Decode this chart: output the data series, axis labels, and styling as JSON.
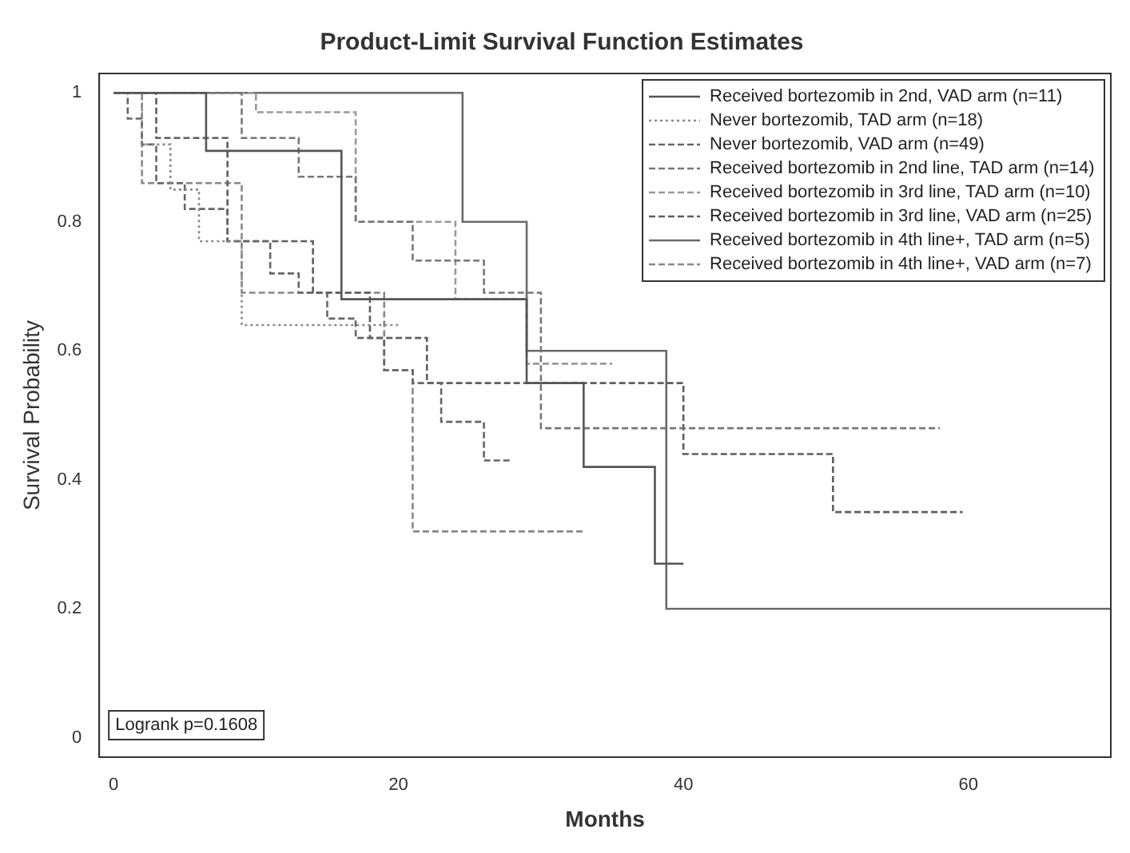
{
  "chart_data": {
    "type": "step",
    "title": "Product-Limit Survival Function Estimates",
    "xlabel": "Months",
    "ylabel": "Survival Probability",
    "xlim": [
      -1,
      70
    ],
    "xticks": [
      0,
      20,
      40,
      60
    ],
    "ylim": [
      -0.03,
      1.03
    ],
    "yticks": [
      0,
      0.2,
      0.4,
      0.6,
      0.8,
      1
    ],
    "legend": "top right",
    "grid": false,
    "annotations": [
      "Logrank p=0.1608"
    ],
    "series": [
      {
        "name": "Received bortezomib in 2nd, VAD arm (n=11)",
        "color": "#555555",
        "line_style": "solid",
        "x": [
          0,
          6.5,
          16,
          29,
          33,
          38,
          40
        ],
        "values": [
          1,
          0.91,
          0.68,
          0.55,
          0.42,
          0.27,
          0.27
        ]
      },
      {
        "name": "Never bortezomib, TAD arm (n=18)",
        "color": "#8a8a8a",
        "line_style": "dotted",
        "x": [
          0,
          2,
          4,
          6,
          9,
          20
        ],
        "values": [
          1,
          0.92,
          0.85,
          0.77,
          0.64,
          0.64
        ]
      },
      {
        "name": "Never bortezomib, VAD arm (n=49)",
        "color": "#666666",
        "line_style": "dashed",
        "x": [
          0,
          1,
          2,
          3,
          5,
          8,
          11,
          13,
          15,
          17,
          19,
          21,
          23,
          26,
          28
        ],
        "values": [
          1,
          0.96,
          0.92,
          0.86,
          0.82,
          0.77,
          0.72,
          0.69,
          0.65,
          0.62,
          0.57,
          0.55,
          0.49,
          0.43,
          0.43
        ]
      },
      {
        "name": "Received bortezomib in 2nd line, TAD arm (n=14)",
        "color": "#777777",
        "line_style": "dashed",
        "x": [
          0,
          9,
          13,
          17,
          21,
          26,
          30,
          58
        ],
        "values": [
          1,
          0.93,
          0.87,
          0.8,
          0.74,
          0.69,
          0.48,
          0.48
        ]
      },
      {
        "name": "Received bortezomib in 3rd line, TAD arm (n=10)",
        "color": "#999999",
        "line_style": "dashed",
        "x": [
          0,
          10,
          17,
          24,
          29,
          35
        ],
        "values": [
          1,
          0.97,
          0.8,
          0.68,
          0.58,
          0.58
        ]
      },
      {
        "name": "Received bortezomib in 3rd line, VAD arm (n=25)",
        "color": "#5e5e5e",
        "line_style": "dashed",
        "x": [
          0,
          3,
          8,
          14,
          18,
          22,
          31,
          40,
          50.5,
          59.6
        ],
        "values": [
          1,
          0.93,
          0.77,
          0.69,
          0.62,
          0.55,
          0.55,
          0.44,
          0.35,
          0.35
        ]
      },
      {
        "name": "Received bortezomib in 4th line+, TAD arm (n=5)",
        "color": "#6a6a6a",
        "line_style": "solid",
        "x": [
          0,
          24.5,
          29,
          38.8,
          70
        ],
        "values": [
          1,
          0.8,
          0.6,
          0.2,
          0.2
        ]
      },
      {
        "name": "Received bortezomib in 4th line+, VAD arm (n=7)",
        "color": "#888888",
        "line_style": "dashed",
        "x": [
          0,
          2,
          9,
          19,
          21,
          33
        ],
        "values": [
          1,
          0.86,
          0.69,
          0.57,
          0.32,
          0.32
        ]
      }
    ]
  }
}
